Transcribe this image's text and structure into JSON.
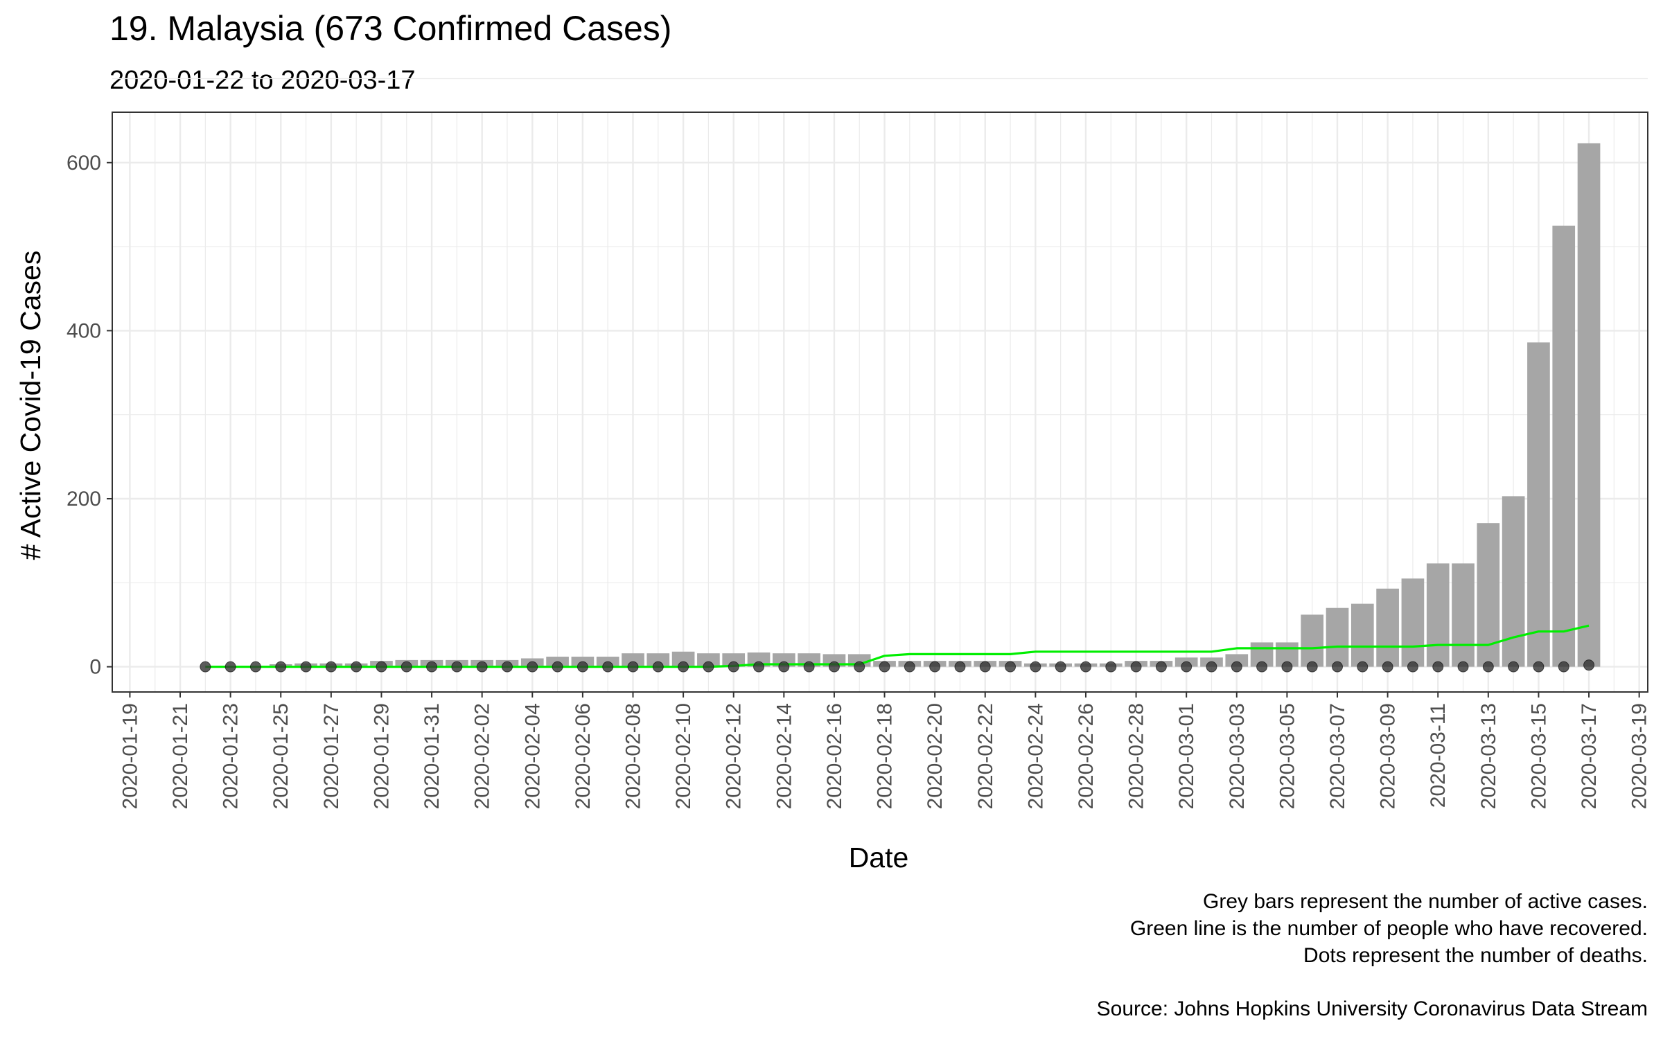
{
  "chart_data": {
    "type": "bar",
    "title": "19. Malaysia (673 Confirmed Cases)",
    "subtitle": "2020-01-22 to 2020-03-17",
    "xlabel": "Date",
    "ylabel": "# Active Covid-19 Cases",
    "ylim": [
      -30,
      660
    ],
    "y_ticks": [
      0,
      200,
      400,
      600
    ],
    "x_range": [
      "2020-01-19",
      "2020-03-19"
    ],
    "x_tick_labels": [
      "2020-01-19",
      "2020-01-21",
      "2020-01-23",
      "2020-01-25",
      "2020-01-27",
      "2020-01-29",
      "2020-01-31",
      "2020-02-02",
      "2020-02-04",
      "2020-02-06",
      "2020-02-08",
      "2020-02-10",
      "2020-02-12",
      "2020-02-14",
      "2020-02-16",
      "2020-02-18",
      "2020-02-20",
      "2020-02-22",
      "2020-02-24",
      "2020-02-26",
      "2020-02-28",
      "2020-03-01",
      "2020-03-03",
      "2020-03-05",
      "2020-03-07",
      "2020-03-09",
      "2020-03-11",
      "2020-03-13",
      "2020-03-15",
      "2020-03-17",
      "2020-03-19"
    ],
    "grid": true,
    "legend": "none",
    "colors": {
      "bars": "#a6a6a6",
      "recovered_line": "#00ee00",
      "death_dots": "#333333",
      "grid": "#ebebeb"
    },
    "dates": [
      "2020-01-22",
      "2020-01-23",
      "2020-01-24",
      "2020-01-25",
      "2020-01-26",
      "2020-01-27",
      "2020-01-28",
      "2020-01-29",
      "2020-01-30",
      "2020-01-31",
      "2020-02-01",
      "2020-02-02",
      "2020-02-03",
      "2020-02-04",
      "2020-02-05",
      "2020-02-06",
      "2020-02-07",
      "2020-02-08",
      "2020-02-09",
      "2020-02-10",
      "2020-02-11",
      "2020-02-12",
      "2020-02-13",
      "2020-02-14",
      "2020-02-15",
      "2020-02-16",
      "2020-02-17",
      "2020-02-18",
      "2020-02-19",
      "2020-02-20",
      "2020-02-21",
      "2020-02-22",
      "2020-02-23",
      "2020-02-24",
      "2020-02-25",
      "2020-02-26",
      "2020-02-27",
      "2020-02-28",
      "2020-02-29",
      "2020-03-01",
      "2020-03-02",
      "2020-03-03",
      "2020-03-04",
      "2020-03-05",
      "2020-03-06",
      "2020-03-07",
      "2020-03-08",
      "2020-03-09",
      "2020-03-10",
      "2020-03-11",
      "2020-03-12",
      "2020-03-13",
      "2020-03-14",
      "2020-03-15",
      "2020-03-16",
      "2020-03-17"
    ],
    "series": [
      {
        "values": [
          0,
          0,
          0,
          3,
          4,
          4,
          4,
          7,
          8,
          8,
          8,
          8,
          8,
          10,
          12,
          12,
          12,
          16,
          16,
          18,
          16,
          16,
          17,
          16,
          16,
          15,
          15,
          7,
          7,
          7,
          7,
          7,
          7,
          4,
          4,
          4,
          4,
          7,
          7,
          11,
          11,
          15,
          29,
          29,
          62,
          70,
          75,
          93,
          105,
          123,
          123,
          171,
          203,
          386,
          525,
          623
        ]
      },
      {
        "values": [
          0,
          0,
          0,
          0,
          0,
          0,
          0,
          0,
          0,
          0,
          0,
          0,
          0,
          0,
          0,
          0,
          0,
          0,
          0,
          0,
          0,
          1,
          3,
          3,
          3,
          3,
          3,
          13,
          15,
          15,
          15,
          15,
          15,
          18,
          18,
          18,
          18,
          18,
          18,
          18,
          18,
          22,
          22,
          22,
          22,
          24,
          24,
          24,
          24,
          26,
          26,
          26,
          35,
          42,
          42,
          49
        ]
      },
      {
        "values": [
          0,
          0,
          0,
          0,
          0,
          0,
          0,
          0,
          0,
          0,
          0,
          0,
          0,
          0,
          0,
          0,
          0,
          0,
          0,
          0,
          0,
          0,
          0,
          0,
          0,
          0,
          0,
          0,
          0,
          0,
          0,
          0,
          0,
          0,
          0,
          0,
          0,
          0,
          0,
          0,
          0,
          0,
          0,
          0,
          0,
          0,
          0,
          0,
          0,
          0,
          0,
          0,
          0,
          0,
          0,
          2
        ]
      }
    ]
  },
  "caption": {
    "line1": "Grey bars represent the number of active cases.",
    "line2": "Green line is the number of people who have recovered.",
    "line3": "Dots represent the number of deaths.",
    "source": "Source: Johns Hopkins University Coronavirus Data Stream"
  }
}
